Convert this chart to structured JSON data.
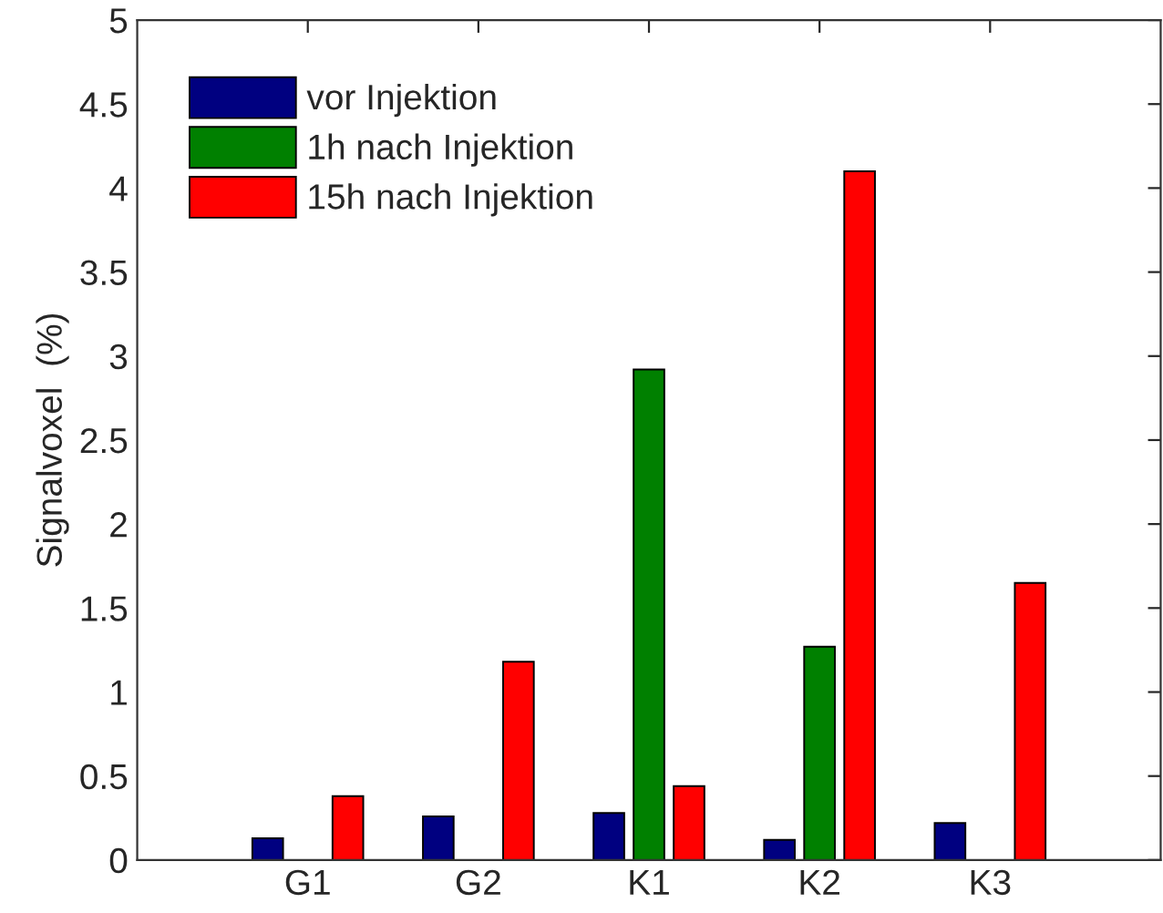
{
  "chart_data": {
    "type": "bar",
    "ylabel": "Signalvoxel  (%)",
    "categories": [
      "G1",
      "G2",
      "K1",
      "K2",
      "K3"
    ],
    "series": [
      {
        "name": "vor Injektion",
        "color": "#000080",
        "values": [
          0.13,
          0.26,
          0.28,
          0.12,
          0.22
        ]
      },
      {
        "name": "1h nach Injektion",
        "color": "#008000",
        "values": [
          null,
          null,
          2.92,
          1.27,
          null
        ]
      },
      {
        "name": "15h nach Injektion",
        "color": "#ff0000",
        "values": [
          0.38,
          1.18,
          0.44,
          4.1,
          1.65
        ]
      }
    ],
    "ylim": [
      0,
      5
    ],
    "yticks": [
      0,
      0.5,
      1,
      1.5,
      2,
      2.5,
      3,
      3.5,
      4,
      4.5,
      5
    ],
    "legend": "top left",
    "grid": false
  }
}
